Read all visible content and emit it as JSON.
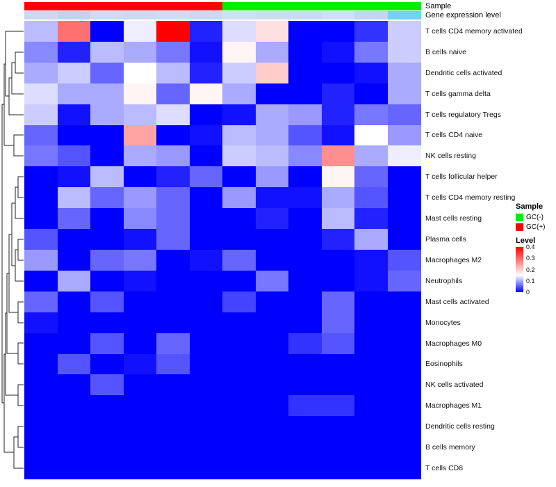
{
  "chart_data": {
    "type": "heatmap",
    "title": "",
    "rows": [
      "T cells CD4 memory activated",
      "B cells naive",
      "Dendritic cells activated",
      "T cells gamma delta",
      "T cells regulatory Tregs",
      "T cells CD4 naive",
      "NK cells resting",
      "T cells follicular helper",
      "T cells CD4 memory resting",
      "Mast cells resting",
      "Plasma cells",
      "Macrophages M2",
      "Neutrophils",
      "Mast cells activated",
      "Monocytes",
      "Macrophages M0",
      "Eosinophils",
      "NK cells activated",
      "Macrophages M1",
      "Dendritic cells resting",
      "B cells memory",
      "T cells CD8"
    ],
    "n_columns": 12,
    "column_sample_group": [
      "GC(+)",
      "GC(+)",
      "GC(+)",
      "GC(+)",
      "GC(+)",
      "GC(+)",
      "GC(-)",
      "GC(-)",
      "GC(-)",
      "GC(-)",
      "GC(-)",
      "GC(-)"
    ],
    "values": [
      [
        0.11,
        0.29,
        0.0,
        0.14,
        0.4,
        0.02,
        0.13,
        0.18,
        0.0,
        0.0,
        0.03,
        0.12
      ],
      [
        0.08,
        0.02,
        0.11,
        0.1,
        0.07,
        0.01,
        0.16,
        0.1,
        0.0,
        0.01,
        0.07,
        0.12
      ],
      [
        0.1,
        0.12,
        0.06,
        0.15,
        0.11,
        0.02,
        0.12,
        0.2,
        0.0,
        0.0,
        0.01,
        0.1
      ],
      [
        0.13,
        0.1,
        0.1,
        0.16,
        0.06,
        0.16,
        0.1,
        0.0,
        0.0,
        0.02,
        0.0,
        0.1
      ],
      [
        0.12,
        0.01,
        0.1,
        0.11,
        0.13,
        0.0,
        0.01,
        0.1,
        0.09,
        0.02,
        0.07,
        0.06
      ],
      [
        0.06,
        0.0,
        0.0,
        0.24,
        0.0,
        0.01,
        0.11,
        0.1,
        0.05,
        0.01,
        0.15,
        0.09
      ],
      [
        0.07,
        0.05,
        0.0,
        0.1,
        0.09,
        0.0,
        0.12,
        0.11,
        0.08,
        0.26,
        0.1,
        0.14
      ],
      [
        0.0,
        0.01,
        0.11,
        0.0,
        0.02,
        0.06,
        0.0,
        0.09,
        0.0,
        0.16,
        0.06,
        0.0
      ],
      [
        0.0,
        0.11,
        0.06,
        0.09,
        0.06,
        0.0,
        0.09,
        0.01,
        0.01,
        0.1,
        0.05,
        0.0
      ],
      [
        0.0,
        0.06,
        0.0,
        0.08,
        0.06,
        0.0,
        0.0,
        0.02,
        0.0,
        0.11,
        0.02,
        0.0
      ],
      [
        0.05,
        0.0,
        0.0,
        0.01,
        0.06,
        0.0,
        0.0,
        0.0,
        0.0,
        0.02,
        0.1,
        0.0
      ],
      [
        0.09,
        0.0,
        0.06,
        0.07,
        0.0,
        0.01,
        0.06,
        0.0,
        0.0,
        0.0,
        0.01,
        0.05
      ],
      [
        0.0,
        0.1,
        0.0,
        0.01,
        0.0,
        0.0,
        0.0,
        0.07,
        0.0,
        0.0,
        0.01,
        0.06
      ],
      [
        0.06,
        0.0,
        0.05,
        0.0,
        0.0,
        0.0,
        0.04,
        0.0,
        0.0,
        0.06,
        0.0,
        0.0
      ],
      [
        0.01,
        0.0,
        0.0,
        0.0,
        0.0,
        0.0,
        0.0,
        0.0,
        0.0,
        0.06,
        0.0,
        0.0
      ],
      [
        0.0,
        0.0,
        0.05,
        0.0,
        0.06,
        0.0,
        0.0,
        0.0,
        0.03,
        0.05,
        0.0,
        0.0
      ],
      [
        0.0,
        0.05,
        0.0,
        0.01,
        0.05,
        0.0,
        0.0,
        0.0,
        0.0,
        0.0,
        0.0,
        0.0
      ],
      [
        0.0,
        0.0,
        0.05,
        0.0,
        0.0,
        0.0,
        0.0,
        0.0,
        0.0,
        0.0,
        0.0,
        0.0
      ],
      [
        0.0,
        0.0,
        0.0,
        0.0,
        0.0,
        0.0,
        0.0,
        0.0,
        0.03,
        0.03,
        0.0,
        0.0
      ],
      [
        0.0,
        0.0,
        0.0,
        0.0,
        0.0,
        0.0,
        0.0,
        0.0,
        0.0,
        0.0,
        0.0,
        0.0
      ],
      [
        0.0,
        0.0,
        0.0,
        0.0,
        0.0,
        0.0,
        0.0,
        0.0,
        0.0,
        0.0,
        0.0,
        0.0
      ],
      [
        0.0,
        0.0,
        0.0,
        0.0,
        0.0,
        0.0,
        0.0,
        0.0,
        0.0,
        0.0,
        0.0,
        0.0
      ]
    ],
    "value_range": [
      0,
      0.4
    ],
    "colormap": {
      "low": "#0000FF",
      "mid": "#FFFFFF",
      "high": "#FF0000",
      "mid_value": 0.15
    },
    "top_annotations": {
      "sample_label": "Sample",
      "gene_expression_label": "Gene expression level",
      "sample_colors": {
        "GC(+)": "#FF0000",
        "GC(-)": "#00EE00"
      },
      "gene_expression_colors": [
        "#ccd9f0",
        "#c2d4ec",
        "#cdddf2",
        "#c9dcf0",
        "#cddef2",
        "#c7daee",
        "#d0e0f4",
        "#cbdef0",
        "#c9dcf0",
        "#cfe0f4",
        "#c4d6ee",
        "#6fd3f2"
      ]
    },
    "legend_sample": {
      "title": "Sample",
      "items": [
        {
          "label": "GC(-)",
          "color": "#00EE00"
        },
        {
          "label": "GC(+)",
          "color": "#FF0000"
        }
      ]
    },
    "legend_level": {
      "title": "Level",
      "ticks": [
        "0.4",
        "0.3",
        "0.2",
        "0.1",
        "0"
      ],
      "tick_values": [
        0.4,
        0.3,
        0.2,
        0.1,
        0
      ],
      "max": 0.4,
      "min": 0
    },
    "layout": {
      "grid": false,
      "row_dendrogram": "left",
      "column_labels": "none",
      "legend_position": "right"
    }
  }
}
